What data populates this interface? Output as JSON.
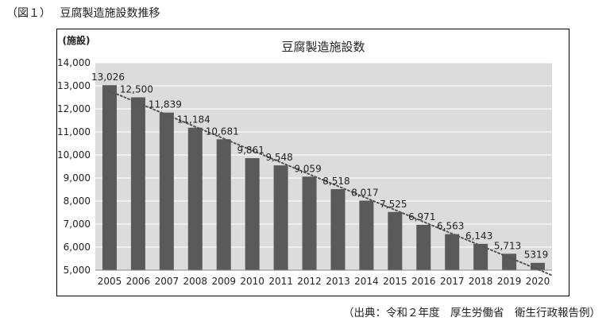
{
  "page": {
    "figure_caption": "（図１）　 豆腐製造施設数推移",
    "source": "（出典：令和２年度　厚生労働省　衛生行政報告例）"
  },
  "colors": {
    "bar": "#5a5a5a",
    "plot_background": "#dcdcdc",
    "gridline": "#ffffff",
    "trendline": "#555555"
  },
  "chart_data": {
    "type": "bar",
    "title": "豆腐製造施設数",
    "ylabel": "(施設)",
    "xlabel": "",
    "categories": [
      "2005",
      "2006",
      "2007",
      "2008",
      "2009",
      "2010",
      "2011",
      "2012",
      "2013",
      "2014",
      "2015",
      "2016",
      "2017",
      "2018",
      "2019",
      "2020"
    ],
    "values": [
      13026,
      12500,
      11839,
      11184,
      10681,
      9861,
      9548,
      9059,
      8518,
      8017,
      7525,
      6971,
      6563,
      6143,
      5713,
      5319
    ],
    "data_labels": [
      "13,026",
      "12,500",
      "11,839",
      "11,184",
      "10,681",
      "9,861",
      "9,548",
      "9,059",
      "8,518",
      "8,017",
      "7,525",
      "6,971",
      "6,563",
      "6,143",
      "5,713",
      "5319"
    ],
    "ylim": [
      5000,
      14000
    ],
    "yticks": [
      5000,
      6000,
      7000,
      8000,
      9000,
      10000,
      11000,
      12000,
      13000,
      14000
    ],
    "ytick_labels": [
      "5,000",
      "6,000",
      "7,000",
      "8,000",
      "9,000",
      "10,000",
      "11,000",
      "12,000",
      "13,000",
      "14,000"
    ],
    "grid": true,
    "trendline": "linear, dotted"
  }
}
